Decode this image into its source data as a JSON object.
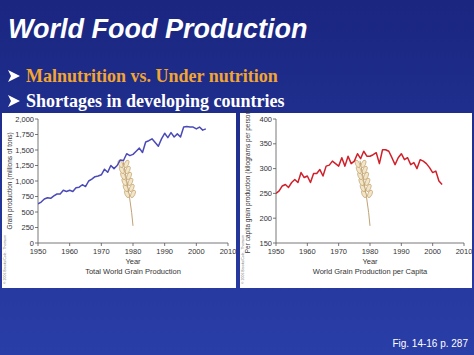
{
  "slide": {
    "title": "World Food Production",
    "bullets": [
      "Malnutrition vs. Under nutrition",
      "Shortages in developing countries"
    ],
    "caption": "Fig. 14-16 p. 287"
  },
  "chart_data": [
    {
      "type": "line",
      "title": "Total World Grain Production",
      "x_label": "Year",
      "y_label": "Grain production (millions of tons)",
      "color": "#4a4ab8",
      "annotations": [
        "© 2006 Brooks/Cole - Thomson"
      ],
      "x": [
        1950,
        1951,
        1952,
        1953,
        1954,
        1955,
        1956,
        1957,
        1958,
        1959,
        1960,
        1961,
        1962,
        1963,
        1964,
        1965,
        1966,
        1967,
        1968,
        1969,
        1970,
        1971,
        1972,
        1973,
        1974,
        1975,
        1976,
        1977,
        1978,
        1979,
        1980,
        1981,
        1982,
        1983,
        1984,
        1985,
        1986,
        1987,
        1988,
        1989,
        1990,
        1991,
        1992,
        1993,
        1994,
        1995,
        1996,
        1997,
        1998,
        1999,
        2000,
        2001,
        2002,
        2003
      ],
      "values": [
        630,
        660,
        710,
        730,
        720,
        760,
        790,
        790,
        850,
        830,
        850,
        830,
        890,
        900,
        940,
        910,
        1000,
        1030,
        1070,
        1080,
        1100,
        1190,
        1140,
        1250,
        1200,
        1250,
        1340,
        1330,
        1440,
        1410,
        1430,
        1480,
        1530,
        1460,
        1630,
        1650,
        1680,
        1620,
        1560,
        1680,
        1770,
        1700,
        1780,
        1710,
        1760,
        1710,
        1870,
        1880,
        1870,
        1870,
        1840,
        1870,
        1820,
        1840
      ],
      "xlim": [
        1950,
        2010
      ],
      "xticks": [
        1950,
        1960,
        1970,
        1980,
        1990,
        2000,
        2010
      ],
      "ylim": [
        0,
        2000
      ],
      "yticks": [
        0,
        250,
        500,
        750,
        {
          "value": 1000,
          "label": "1,000"
        },
        {
          "value": 1250,
          "label": "1,250"
        },
        {
          "value": 1500,
          "label": "1,500"
        },
        {
          "value": 1750,
          "label": "1,750"
        },
        {
          "value": 2000,
          "label": "2,000"
        }
      ]
    },
    {
      "type": "line",
      "title": "World Grain Production per Capita",
      "x_label": "Year",
      "y_label": "Per capita grain production (kilograms per person)",
      "color": "#d0202a",
      "annotations": [
        "© 2006 Brooks/Cole - Thomson"
      ],
      "x": [
        1950,
        1951,
        1952,
        1953,
        1954,
        1955,
        1956,
        1957,
        1958,
        1959,
        1960,
        1961,
        1962,
        1963,
        1964,
        1965,
        1966,
        1967,
        1968,
        1969,
        1970,
        1971,
        1972,
        1973,
        1974,
        1975,
        1976,
        1977,
        1978,
        1979,
        1980,
        1981,
        1982,
        1983,
        1984,
        1985,
        1986,
        1987,
        1988,
        1989,
        1990,
        1991,
        1992,
        1993,
        1994,
        1995,
        1996,
        1997,
        1998,
        1999,
        2000,
        2001,
        2002,
        2003
      ],
      "values": [
        250,
        255,
        265,
        268,
        262,
        272,
        278,
        272,
        292,
        282,
        285,
        272,
        290,
        290,
        298,
        285,
        305,
        307,
        315,
        310,
        305,
        322,
        305,
        325,
        310,
        315,
        330,
        320,
        335,
        325,
        325,
        328,
        332,
        310,
        338,
        338,
        335,
        322,
        308,
        322,
        330,
        318,
        322,
        308,
        312,
        300,
        318,
        315,
        310,
        302,
        292,
        295,
        275,
        268
      ],
      "xlim": [
        1950,
        2010
      ],
      "xticks": [
        1950,
        1960,
        1970,
        1980,
        1990,
        2000,
        2010
      ],
      "ylim": [
        150,
        400
      ],
      "yticks": [
        150,
        200,
        250,
        300,
        350,
        400
      ]
    }
  ]
}
